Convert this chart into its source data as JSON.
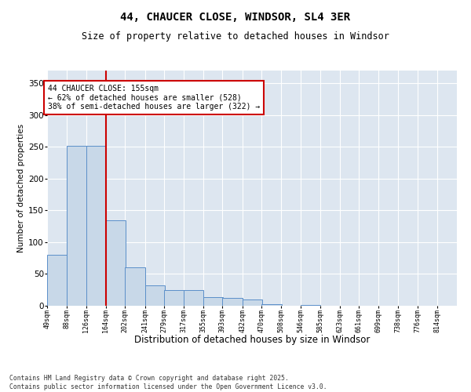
{
  "title": "44, CHAUCER CLOSE, WINDSOR, SL4 3ER",
  "subtitle": "Size of property relative to detached houses in Windsor",
  "xlabel": "Distribution of detached houses by size in Windsor",
  "ylabel": "Number of detached properties",
  "bar_color": "#c8d8e8",
  "bar_edge_color": "#5b8fc9",
  "background_color": "#dde6f0",
  "grid_color": "#ffffff",
  "annotation_box_color": "#cc0000",
  "property_line_color": "#cc0000",
  "property_size": 155,
  "annotation_text": "44 CHAUCER CLOSE: 155sqm\n← 62% of detached houses are smaller (528)\n38% of semi-detached houses are larger (322) →",
  "footnote": "Contains HM Land Registry data © Crown copyright and database right 2025.\nContains public sector information licensed under the Open Government Licence v3.0.",
  "bins": [
    49,
    88,
    126,
    164,
    202,
    241,
    279,
    317,
    355,
    393,
    432,
    470,
    508,
    546,
    585,
    623,
    661,
    699,
    738,
    776,
    814
  ],
  "values": [
    80,
    252,
    252,
    135,
    60,
    32,
    25,
    25,
    13,
    12,
    10,
    3,
    0,
    1,
    0,
    0,
    0,
    0,
    0,
    0
  ],
  "ylim": [
    0,
    370
  ],
  "yticks": [
    0,
    50,
    100,
    150,
    200,
    250,
    300,
    350
  ]
}
